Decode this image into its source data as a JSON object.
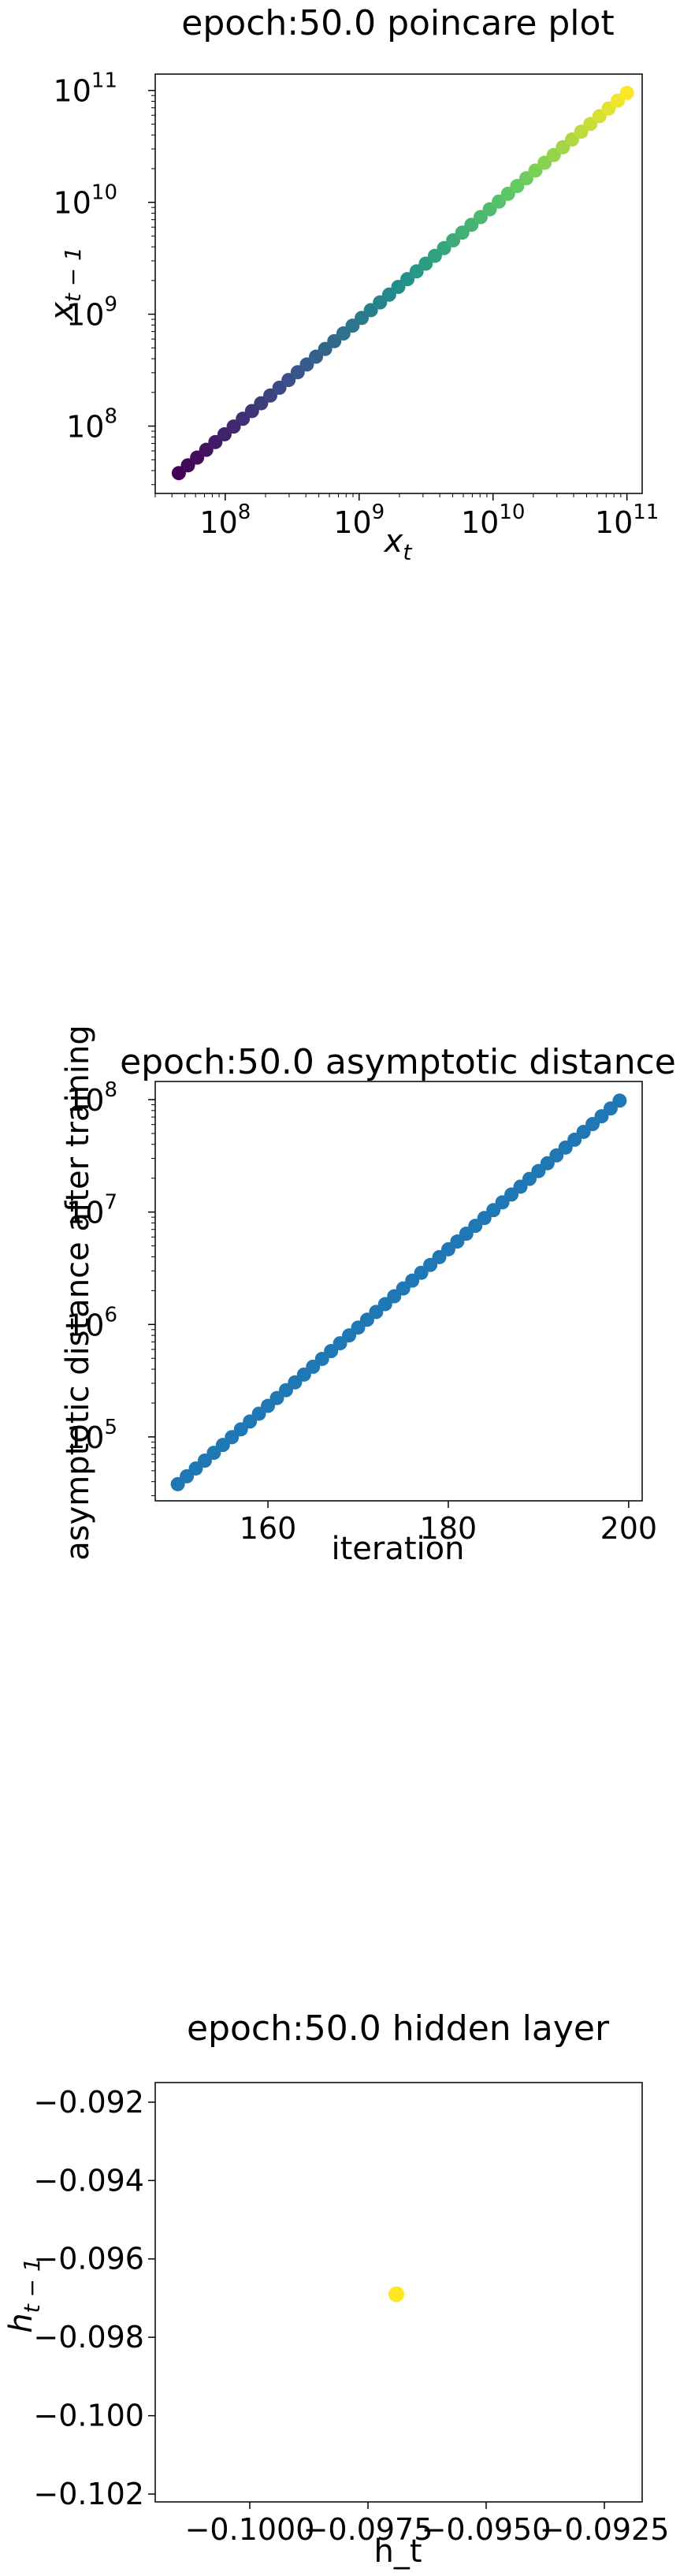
{
  "chart_data": [
    {
      "type": "scatter",
      "title": "epoch:50.0 poincare plot",
      "xlabel_base": "x",
      "xlabel_sub": "t",
      "ylabel_base": "x",
      "ylabel_sub": "t − 1",
      "xscale": "log",
      "yscale": "log",
      "xlim": [
        30000000.0,
        130000000000.0
      ],
      "ylim": [
        25000000.0,
        140000000000.0
      ],
      "xticks": [
        100000000.0,
        1000000000.0,
        10000000000.0,
        100000000000.0
      ],
      "yticks": [
        100000000.0,
        1000000000.0,
        10000000000.0,
        100000000000.0
      ],
      "tick_base": "10",
      "xtick_exps": [
        "8",
        "9",
        "10",
        "11"
      ],
      "ytick_exps": [
        "8",
        "9",
        "10",
        "11"
      ],
      "colormap": "viridis",
      "series": [
        {
          "x_start": 45000000.0,
          "x_end": 100000000000.0,
          "y_start": 38000000.0,
          "y_end": 95000000000.0,
          "count": 50
        }
      ],
      "grid": false
    },
    {
      "type": "scatter",
      "title": "epoch:50.0 asymptotic distance",
      "xlabel": "iteration",
      "ylabel": "asymptotic distance after training",
      "xscale": "linear",
      "yscale": "log",
      "xlim": [
        147.5,
        201.5
      ],
      "ylim": [
        27000.0,
        145000000.0
      ],
      "xticks": [
        160,
        180,
        200
      ],
      "xtick_labels": [
        "160",
        "180",
        "200"
      ],
      "yticks": [
        100000.0,
        1000000.0,
        10000000.0,
        100000000.0
      ],
      "tick_base": "10",
      "ytick_exps": [
        "5",
        "6",
        "7",
        "8"
      ],
      "color": "#1f77b4",
      "series": [
        {
          "x_start": 150,
          "x_end": 199,
          "y_start": 38000.0,
          "y_end": 98000000.0,
          "count": 50
        }
      ],
      "grid": false
    },
    {
      "type": "scatter",
      "title": "epoch:50.0 hidden layer",
      "xlabel": "h_t",
      "ylabel_base": "h",
      "ylabel_sub": "t − 1",
      "xscale": "linear",
      "yscale": "linear",
      "xlim": [
        -0.102,
        -0.0917
      ],
      "ylim": [
        -0.1022,
        -0.0915
      ],
      "xticks": [
        -0.1,
        -0.0975,
        -0.095,
        -0.0925
      ],
      "xtick_labels": [
        "−0.1000",
        "−0.0975",
        "−0.0950",
        "−0.0925"
      ],
      "yticks": [
        -0.102,
        -0.1,
        -0.098,
        -0.096,
        -0.094,
        -0.092
      ],
      "ytick_labels": [
        "−0.102",
        "−0.100",
        "−0.098",
        "−0.096",
        "−0.094",
        "−0.092"
      ],
      "color": "#fde725",
      "points": [
        {
          "x": -0.0969,
          "y": -0.0969
        }
      ],
      "grid": false
    }
  ]
}
